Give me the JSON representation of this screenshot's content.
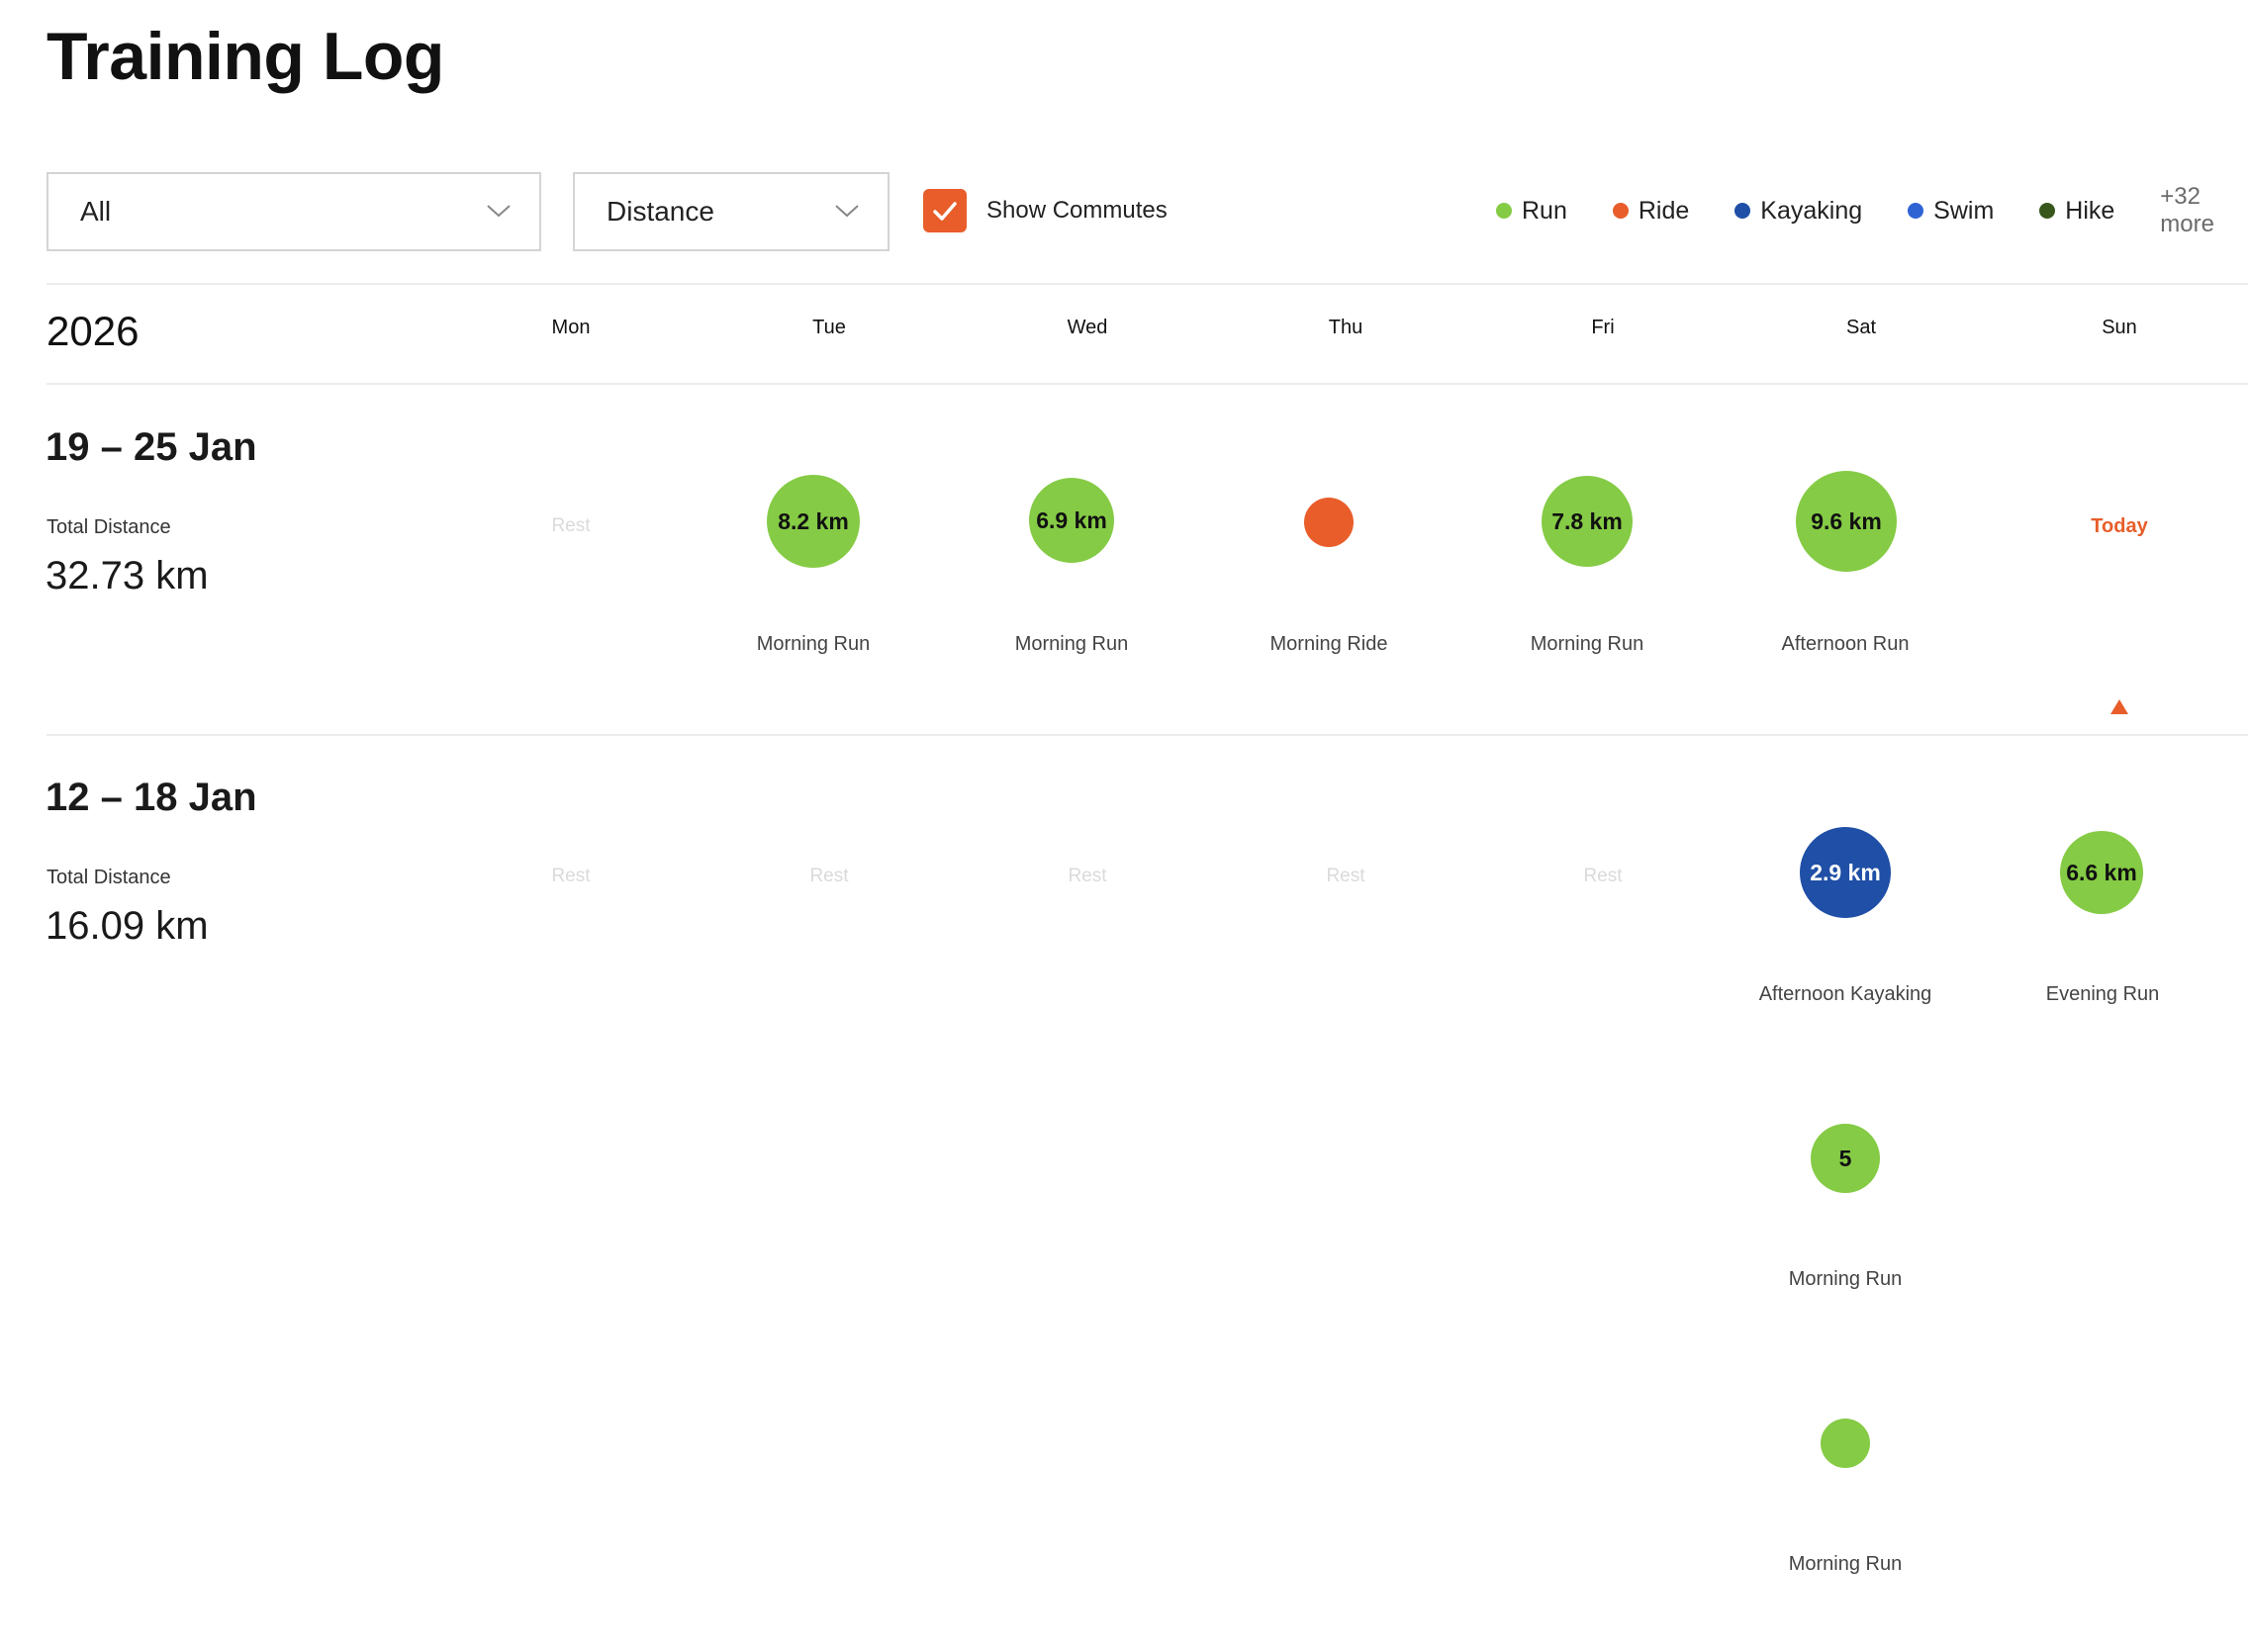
{
  "page": {
    "title": "Training Log"
  },
  "filters": {
    "sport": {
      "value": "All"
    },
    "metric": {
      "value": "Distance"
    },
    "commutes": {
      "label": "Show Commutes",
      "checked": true
    }
  },
  "legend": {
    "items": [
      {
        "label": "Run",
        "color": "#85cb45"
      },
      {
        "label": "Ride",
        "color": "#e85d2a"
      },
      {
        "label": "Kayaking",
        "color": "#1f4fa6"
      },
      {
        "label": "Swim",
        "color": "#2f63d4"
      },
      {
        "label": "Hike",
        "color": "#38571d"
      }
    ],
    "more": "+32 more"
  },
  "calendar": {
    "year": "2026",
    "days": [
      "Mon",
      "Tue",
      "Wed",
      "Thu",
      "Fri",
      "Sat",
      "Sun"
    ]
  },
  "labels": {
    "rest": "Rest",
    "today": "Today",
    "total_distance": "Total Distance"
  },
  "weeks": [
    {
      "title": "19 – 25 Jan",
      "total": "32.73 km",
      "activities": [
        {
          "label": "8.2 km",
          "name": "Morning Run",
          "color": "#85cb45"
        },
        {
          "label": "6.9 km",
          "name": "Morning Run",
          "color": "#85cb45"
        },
        {
          "label": "",
          "name": "Morning Ride",
          "color": "#e85d2a"
        },
        {
          "label": "7.8 km",
          "name": "Morning Run",
          "color": "#85cb45"
        },
        {
          "label": "9.6 km",
          "name": "Afternoon Run",
          "color": "#85cb45"
        }
      ]
    },
    {
      "title": "12 – 18 Jan",
      "total": "16.09 km",
      "activities": [
        {
          "label": "2.9 km",
          "name": "Afternoon Kayaking",
          "color": "#1f4fa6"
        },
        {
          "label": "5",
          "name": "Morning Run",
          "color": "#85cb45"
        },
        {
          "label": "",
          "name": "Morning Run",
          "color": "#85cb45"
        },
        {
          "label": "6.6 km",
          "name": "Evening Run",
          "color": "#85cb45"
        }
      ]
    }
  ]
}
